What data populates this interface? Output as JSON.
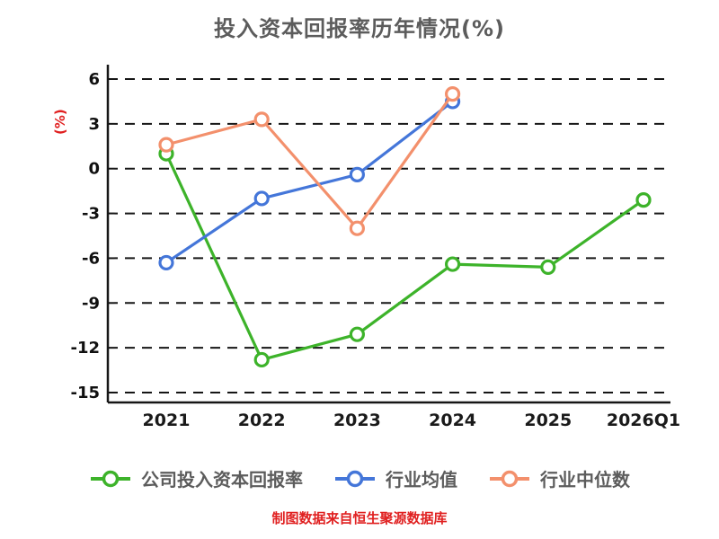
{
  "chart_data": {
    "type": "line",
    "title": "投入资本回报率历年情况(%)",
    "ylabel": "(%)",
    "source": "制图数据来自恒生聚源数据库",
    "categories": [
      "2021",
      "2022",
      "2023",
      "2024",
      "2025",
      "2026Q1"
    ],
    "yticks": [
      6,
      3,
      0,
      -3,
      -6,
      -9,
      -12,
      -15
    ],
    "ylim": [
      -15,
      6
    ],
    "grid": "dashed-horizontal",
    "legend_position": "bottom",
    "series": [
      {
        "name": "公司投入资本回报率",
        "color": "#3db32a",
        "values": [
          1.0,
          -12.8,
          -11.1,
          -6.4,
          -6.6,
          -2.1
        ]
      },
      {
        "name": "行业均值",
        "color": "#4476d9",
        "values": [
          -6.3,
          -2.0,
          -0.4,
          4.5,
          null,
          null
        ]
      },
      {
        "name": "行业中位数",
        "color": "#f3906c",
        "values": [
          1.6,
          3.3,
          -4.0,
          5.0,
          null,
          null
        ]
      }
    ]
  }
}
